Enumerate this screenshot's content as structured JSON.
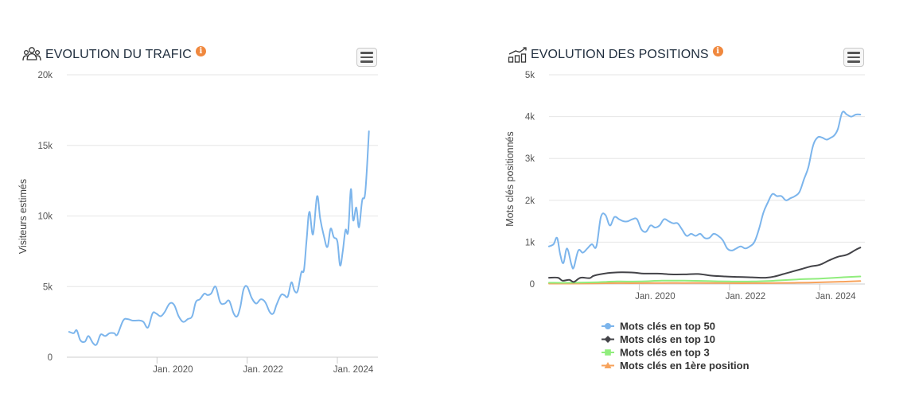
{
  "traffic_panel": {
    "title": "EVOLUTION DU TRAFIC",
    "info": "i",
    "icon": "users-icon"
  },
  "positions_panel": {
    "title": "EVOLUTION DES POSITIONS",
    "info": "i",
    "icon": "bar-chart-growth-icon"
  },
  "chart_data": [
    {
      "type": "line",
      "title": "",
      "xlabel": "",
      "ylabel": "Visiteurs estimés",
      "ylim": [
        0,
        20000
      ],
      "y_ticks": [
        "0",
        "5k",
        "10k",
        "15k",
        "20k"
      ],
      "y_tick_values": [
        0,
        5000,
        10000,
        15000,
        20000
      ],
      "x_ticks": [
        "Jan. 2020",
        "Jan. 2022",
        "Jan. 2024"
      ],
      "x_tick_values": [
        2020.0,
        2022.0,
        2024.0
      ],
      "xlim": [
        2018.0,
        2024.9
      ],
      "grid": true,
      "legend": "none",
      "colors": {
        "line": "#7cb5ec",
        "grid": "#e6e6e6"
      },
      "series": [
        {
          "x": [
            2018.05,
            2018.15,
            2018.22,
            2018.3,
            2018.4,
            2018.48,
            2018.58,
            2018.66,
            2018.75,
            2018.85,
            2018.95,
            2019.05,
            2019.12,
            2019.25,
            2019.35,
            2019.45,
            2019.55,
            2019.62,
            2019.7,
            2019.8,
            2019.9,
            2019.98,
            2020.08,
            2020.17,
            2020.28,
            2020.38,
            2020.48,
            2020.58,
            2020.68,
            2020.78,
            2020.86,
            2020.95,
            2021.05,
            2021.12,
            2021.2,
            2021.3,
            2021.4,
            2021.5,
            2021.6,
            2021.7,
            2021.78,
            2021.85,
            2021.92,
            2022.0,
            2022.1,
            2022.2,
            2022.3,
            2022.4,
            2022.5,
            2022.58,
            2022.65,
            2022.75,
            2022.82,
            2022.9,
            2022.98,
            2023.05,
            2023.12,
            2023.2,
            2023.26,
            2023.32,
            2023.38,
            2023.46,
            2023.55,
            2023.62,
            2023.7,
            2023.78,
            2023.85,
            2023.92,
            2024.0,
            2024.06,
            2024.12,
            2024.18,
            2024.24,
            2024.3,
            2024.35,
            2024.42,
            2024.48,
            2024.55,
            2024.62,
            2024.7
          ],
          "y": [
            1800,
            1700,
            1900,
            1200,
            1100,
            1500,
            1000,
            900,
            1600,
            1500,
            1700,
            1700,
            1600,
            2600,
            2700,
            2600,
            2600,
            2600,
            2500,
            2100,
            3100,
            3100,
            2900,
            3200,
            3800,
            3700,
            2900,
            2500,
            2700,
            2900,
            3900,
            4100,
            4500,
            4400,
            4500,
            5000,
            3900,
            3800,
            4000,
            3100,
            2900,
            3600,
            4800,
            5000,
            4200,
            3800,
            4100,
            3900,
            3200,
            3100,
            3700,
            4400,
            4400,
            4300,
            5300,
            4700,
            4700,
            6000,
            6200,
            8400,
            10300,
            8700,
            11400,
            9800,
            8600,
            7800,
            9100,
            8500,
            8200,
            6500,
            7500,
            9000,
            8900,
            11900,
            9700,
            10600,
            9200,
            11100,
            11700,
            16000
          ]
        }
      ]
    },
    {
      "type": "line",
      "title": "",
      "xlabel": "",
      "ylabel": "Mots clés positionnés",
      "ylim": [
        0,
        5000
      ],
      "y_ticks": [
        "0",
        "1k",
        "2k",
        "3k",
        "4k",
        "5k"
      ],
      "y_tick_values": [
        0,
        1000,
        2000,
        3000,
        4000,
        5000
      ],
      "x_ticks": [
        "Jan. 2020",
        "Jan. 2022",
        "Jan. 2024"
      ],
      "x_tick_values": [
        2020.0,
        2022.0,
        2024.0
      ],
      "xlim": [
        2018.0,
        2025.0
      ],
      "grid": true,
      "legend": "bottom",
      "colors": {
        "grid": "#e6e6e6"
      },
      "series": [
        {
          "name": "Mots clés en top 50",
          "color": "#7cb5ec",
          "marker": "circle",
          "x": [
            2018.0,
            2018.1,
            2018.18,
            2018.25,
            2018.32,
            2018.4,
            2018.5,
            2018.55,
            2018.65,
            2018.75,
            2018.85,
            2018.95,
            2019.05,
            2019.15,
            2019.25,
            2019.35,
            2019.45,
            2019.55,
            2019.65,
            2019.75,
            2019.85,
            2019.95,
            2020.05,
            2020.15,
            2020.25,
            2020.35,
            2020.45,
            2020.55,
            2020.65,
            2020.75,
            2020.85,
            2020.95,
            2021.05,
            2021.15,
            2021.25,
            2021.35,
            2021.45,
            2021.55,
            2021.65,
            2021.75,
            2021.85,
            2021.95,
            2022.05,
            2022.15,
            2022.25,
            2022.35,
            2022.45,
            2022.55,
            2022.65,
            2022.75,
            2022.85,
            2022.95,
            2023.05,
            2023.15,
            2023.25,
            2023.35,
            2023.45,
            2023.55,
            2023.65,
            2023.75,
            2023.85,
            2023.95,
            2024.05,
            2024.15,
            2024.25,
            2024.32,
            2024.4,
            2024.5,
            2024.6,
            2024.7,
            2024.8,
            2024.9
          ],
          "y": [
            900,
            950,
            1100,
            700,
            500,
            850,
            450,
            400,
            800,
            750,
            850,
            950,
            900,
            1600,
            1650,
            1400,
            1600,
            1550,
            1500,
            1500,
            1550,
            1550,
            1300,
            1250,
            1400,
            1350,
            1400,
            1550,
            1500,
            1450,
            1450,
            1300,
            1150,
            1200,
            1150,
            1200,
            1100,
            1100,
            1200,
            1150,
            1050,
            850,
            800,
            850,
            900,
            850,
            900,
            1000,
            1300,
            1700,
            1950,
            2150,
            2100,
            2100,
            2000,
            2050,
            2100,
            2200,
            2500,
            2800,
            3300,
            3500,
            3500,
            3450,
            3500,
            3550,
            3700,
            4100,
            4050,
            4000,
            4050,
            4050
          ]
        },
        {
          "name": "Mots clés en top 10",
          "color": "#434348",
          "marker": "diamond",
          "x": [
            2018.0,
            2018.2,
            2018.3,
            2018.45,
            2018.55,
            2018.7,
            2018.9,
            2019.0,
            2019.3,
            2019.6,
            2019.9,
            2020.1,
            2020.4,
            2020.7,
            2021.0,
            2021.3,
            2021.6,
            2021.9,
            2022.2,
            2022.5,
            2022.8,
            2023.0,
            2023.2,
            2023.4,
            2023.6,
            2023.8,
            2024.0,
            2024.2,
            2024.4,
            2024.6,
            2024.8,
            2024.9
          ],
          "y": [
            150,
            150,
            80,
            100,
            50,
            150,
            140,
            200,
            260,
            280,
            270,
            250,
            250,
            230,
            230,
            240,
            200,
            180,
            170,
            160,
            150,
            180,
            240,
            300,
            360,
            420,
            460,
            560,
            650,
            700,
            820,
            870
          ]
        },
        {
          "name": "Mots clés en top 3",
          "color": "#90ed7d",
          "marker": "square",
          "x": [
            2018.0,
            2018.5,
            2019.0,
            2019.5,
            2020.0,
            2020.5,
            2021.0,
            2021.5,
            2022.0,
            2022.5,
            2023.0,
            2023.5,
            2024.0,
            2024.5,
            2024.9
          ],
          "y": [
            30,
            30,
            40,
            60,
            60,
            80,
            80,
            70,
            60,
            60,
            80,
            110,
            130,
            160,
            180
          ]
        },
        {
          "name": "Mots clés en 1ère position",
          "color": "#f7a35c",
          "marker": "triangle",
          "x": [
            2018.0,
            2018.5,
            2019.0,
            2019.5,
            2020.0,
            2020.5,
            2021.0,
            2021.5,
            2022.0,
            2022.5,
            2023.0,
            2023.5,
            2024.0,
            2024.5,
            2024.9
          ],
          "y": [
            10,
            10,
            15,
            20,
            20,
            25,
            25,
            25,
            20,
            20,
            25,
            30,
            40,
            55,
            70
          ]
        }
      ]
    }
  ]
}
